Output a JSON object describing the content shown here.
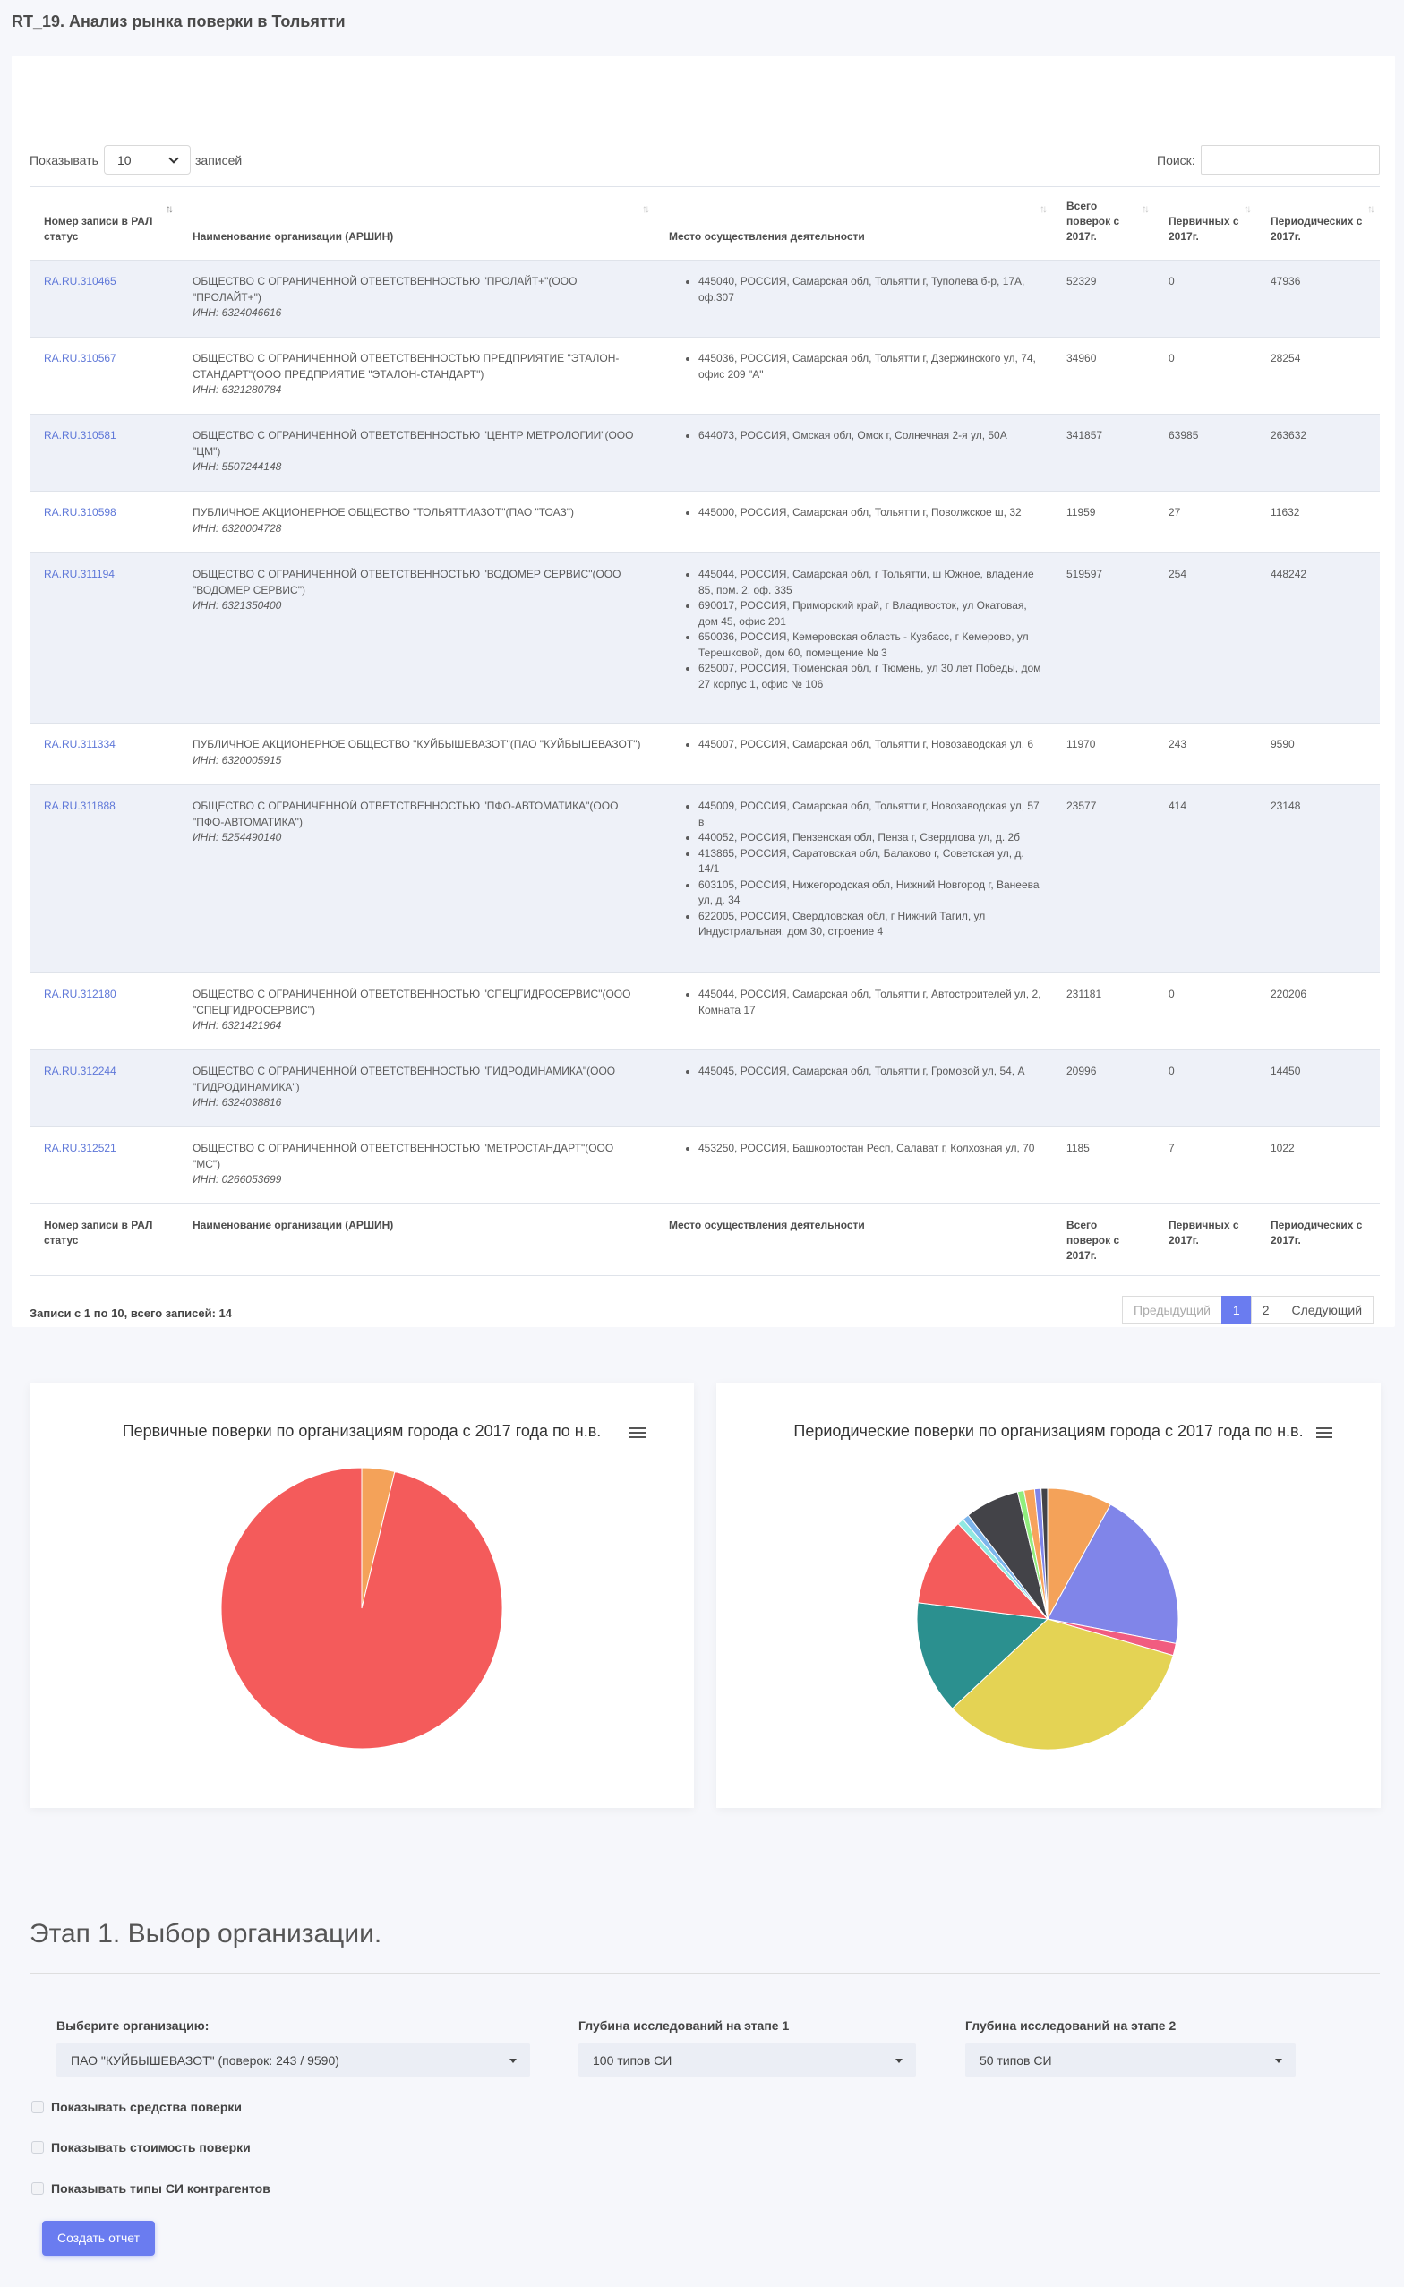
{
  "page": {
    "title": "RT_19. Анализ рынка поверки в Тольятти"
  },
  "table_controls": {
    "show_label": "Показывать",
    "page_length": "10",
    "records_label": "записей",
    "search_label": "Поиск:",
    "search_value": ""
  },
  "columns": [
    "Номер записи в РАЛ статус",
    "Наименование организации (АРШИН)",
    "Место осуществления деятельности",
    "Всего поверок с 2017г.",
    "Первичных с 2017г.",
    "Периодических с 2017г."
  ],
  "rows": [
    {
      "id": "RA.RU.310465",
      "org": "ОБЩЕСТВО С ОГРАНИЧЕННОЙ ОТВЕТСТВЕННОСТЬЮ \"ПРОЛАЙТ+\"(ООО \"ПРОЛАЙТ+\")",
      "inn": "ИНН: 6324046616",
      "addresses": [
        "445040, РОССИЯ, Самарская обл, Тольятти г, Туполева б-р, 17А, оф.307"
      ],
      "total": "52329",
      "primary": "0",
      "periodic": "47936"
    },
    {
      "id": "RA.RU.310567",
      "org": "ОБЩЕСТВО С ОГРАНИЧЕННОЙ ОТВЕТСТВЕННОСТЬЮ ПРЕДПРИЯТИЕ \"ЭТАЛОН-СТАНДАРТ\"(ООО ПРЕДПРИЯТИЕ \"ЭТАЛОН-СТАНДАРТ\")",
      "inn": "ИНН: 6321280784",
      "addresses": [
        "445036, РОССИЯ, Самарская обл, Тольятти г, Дзержинского ул, 74, офис 209 \"А\""
      ],
      "total": "34960",
      "primary": "0",
      "periodic": "28254"
    },
    {
      "id": "RA.RU.310581",
      "org": "ОБЩЕСТВО С ОГРАНИЧЕННОЙ ОТВЕТСТВЕННОСТЬЮ \"ЦЕНТР МЕТРОЛОГИИ\"(ООО \"ЦМ\")",
      "inn": "ИНН: 5507244148",
      "addresses": [
        "644073, РОССИЯ, Омская обл, Омск г, Солнечная 2-я ул, 50А"
      ],
      "total": "341857",
      "primary": "63985",
      "periodic": "263632"
    },
    {
      "id": "RA.RU.310598",
      "org": "ПУБЛИЧНОЕ АКЦИОНЕРНОЕ ОБЩЕСТВО \"ТОЛЬЯТТИАЗОТ\"(ПАО \"ТОАЗ\")",
      "inn": "ИНН: 6320004728",
      "addresses": [
        "445000, РОССИЯ, Самарская обл, Тольятти г, Поволжское ш, 32"
      ],
      "total": "11959",
      "primary": "27",
      "periodic": "11632"
    },
    {
      "id": "RA.RU.311194",
      "org": "ОБЩЕСТВО С ОГРАНИЧЕННОЙ ОТВЕТСТВЕННОСТЬЮ \"ВОДОМЕР СЕРВИС\"(ООО \"ВОДОМЕР СЕРВИС\")",
      "inn": "ИНН: 6321350400",
      "addresses": [
        "445044, РОССИЯ, Самарская обл, г Тольятти, ш Южное, владение 85, пом. 2, оф. 335",
        "690017, РОССИЯ, Приморский край, г Владивосток, ул Окатовая, дом 45, офис 201",
        "650036, РОССИЯ, Кемеровская область - Кузбасс, г Кемерово, ул Терешковой, дом 60, помещение № 3",
        "625007, РОССИЯ, Тюменская обл, г Тюмень, ул 30 лет Победы, дом 27 корпус 1, офис № 106"
      ],
      "total": "519597",
      "primary": "254",
      "periodic": "448242"
    },
    {
      "id": "RA.RU.311334",
      "org": "ПУБЛИЧНОЕ АКЦИОНЕРНОЕ ОБЩЕСТВО \"КУЙБЫШЕВАЗОТ\"(ПАО \"КУЙБЫШЕВАЗОТ\")",
      "inn": "ИНН: 6320005915",
      "addresses": [
        "445007, РОССИЯ, Самарская обл, Тольятти г, Новозаводская ул, 6"
      ],
      "total": "11970",
      "primary": "243",
      "periodic": "9590"
    },
    {
      "id": "RA.RU.311888",
      "org": "ОБЩЕСТВО С ОГРАНИЧЕННОЙ ОТВЕТСТВЕННОСТЬЮ \"ПФО-АВТОМАТИКА\"(ООО \"ПФО-АВТОМАТИКА\")",
      "inn": "ИНН: 5254490140",
      "addresses": [
        "445009, РОССИЯ, Самарская обл, Тольятти г, Новозаводская ул, 57 в",
        "440052, РОССИЯ, Пензенская обл, Пенза г, Свердлова ул, д. 2б",
        "413865, РОССИЯ, Саратовская обл, Балаково г, Советская ул, д. 14/1",
        "603105, РОССИЯ, Нижегородская обл, Нижний Новгород г, Ванеева ул, д. 34",
        "622005, РОССИЯ, Свердловская обл, г Нижний Тагил, ул Индустриальная, дом 30, строение 4"
      ],
      "total": "23577",
      "primary": "414",
      "periodic": "23148"
    },
    {
      "id": "RA.RU.312180",
      "org": "ОБЩЕСТВО С ОГРАНИЧЕННОЙ ОТВЕТСТВЕННОСТЬЮ \"СПЕЦГИДРОСЕРВИС\"(ООО \"СПЕЦГИДРОСЕРВИС\")",
      "inn": "ИНН: 6321421964",
      "addresses": [
        "445044, РОССИЯ, Самарская обл, Тольятти г, Автостроителей ул, 2, Комната 17"
      ],
      "total": "231181",
      "primary": "0",
      "periodic": "220206"
    },
    {
      "id": "RA.RU.312244",
      "org": "ОБЩЕСТВО С ОГРАНИЧЕННОЙ ОТВЕТСТВЕННОСТЬЮ \"ГИДРОДИНАМИКА\"(ООО \"ГИДРОДИНАМИКА\")",
      "inn": "ИНН: 6324038816",
      "addresses": [
        "445045, РОССИЯ, Самарская обл, Тольятти г, Громовой ул, 54, А"
      ],
      "total": "20996",
      "primary": "0",
      "periodic": "14450"
    },
    {
      "id": "RA.RU.312521",
      "org": "ОБЩЕСТВО С ОГРАНИЧЕННОЙ ОТВЕТСТВЕННОСТЬЮ \"МЕТРОСТАНДАРТ\"(ООО \"МС\")",
      "inn": "ИНН: 0266053699",
      "addresses": [
        "453250, РОССИЯ, Башкортостан Респ, Салават г, Колхозная ул, 70"
      ],
      "total": "1185",
      "primary": "7",
      "periodic": "1022"
    }
  ],
  "table_info": "Записи с 1 по 10, всего записей: 14",
  "pager": {
    "prev": "Предыдущий",
    "pages": [
      "1",
      "2"
    ],
    "next": "Следующий"
  },
  "colors": {
    "accent": "#6a7cf0",
    "link": "#5e77d8"
  },
  "chart_data": [
    {
      "type": "pie",
      "title": "Первичные поверки по организациям города с 2017 года по н.в.",
      "slices": [
        {
          "value": 243,
          "color": "#f4a259"
        },
        {
          "value": 6200,
          "color": "#f45b5b"
        }
      ]
    },
    {
      "type": "pie",
      "title": "Периодические поверки по организациям города с 2017 года по н.в.",
      "slices": [
        {
          "value": 8,
          "color": "#f4a259"
        },
        {
          "value": 20,
          "color": "#8085e9"
        },
        {
          "value": 1.5,
          "color": "#f15c80"
        },
        {
          "value": 33.5,
          "color": "#e4d354"
        },
        {
          "value": 14,
          "color": "#2b908f"
        },
        {
          "value": 11,
          "color": "#f45b5b"
        },
        {
          "value": 0.8,
          "color": "#91e8e1"
        },
        {
          "value": 0.8,
          "color": "#7cb5ec"
        },
        {
          "value": 6.7,
          "color": "#434348"
        },
        {
          "value": 0.8,
          "color": "#90ed7d"
        },
        {
          "value": 1.3,
          "color": "#f7a35c"
        },
        {
          "value": 0.8,
          "color": "#8085e9"
        },
        {
          "value": 0.8,
          "color": "#434348"
        }
      ]
    }
  ],
  "stage": {
    "title": "Этап 1. Выбор организации."
  },
  "form": {
    "org_label": "Выберите организацию:",
    "org_value": "ПАО \"КУЙБЫШЕВАЗОТ\" (поверок: 243 / 9590)",
    "depth1_label": "Глубина исследований на этапе 1",
    "depth1_value": "100 типов СИ",
    "depth2_label": "Глубина исследований на этапе 2",
    "depth2_value": "50 типов СИ",
    "chk1": "Показывать средства поверки",
    "chk2": "Показывать стоимость поверки",
    "chk3": "Показывать типы СИ контрагентов",
    "submit": "Создать отчет"
  }
}
